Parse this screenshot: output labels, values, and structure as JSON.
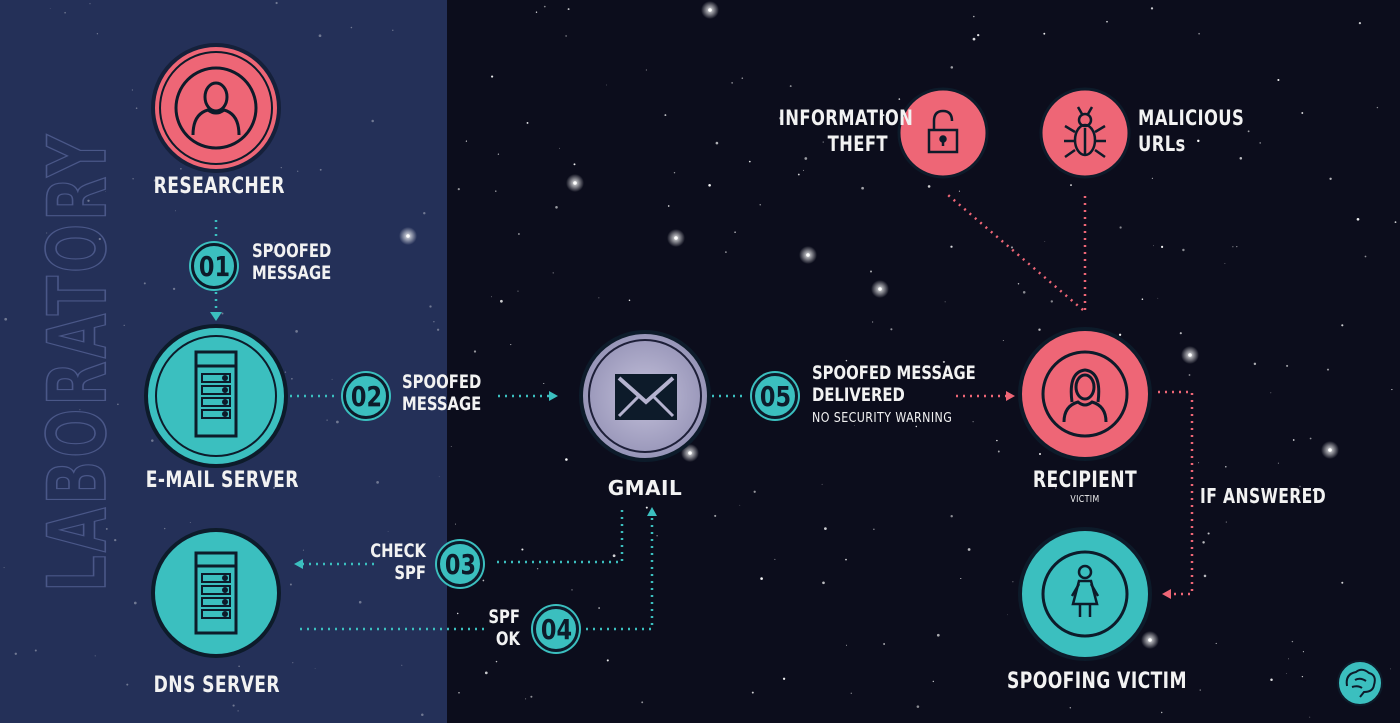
{
  "panel": {
    "label": "LABORATORY",
    "bg_color": "#243058"
  },
  "colors": {
    "teal": "#3bbfbf",
    "pink": "#ee6676",
    "dark": "#0d1b2a",
    "background": "#0c0d1c"
  },
  "nodes": {
    "researcher": {
      "label": "RESEARCHER",
      "icon": "user-icon"
    },
    "email_server": {
      "label": "E-MAIL SERVER",
      "icon": "server-icon"
    },
    "dns_server": {
      "label": "DNS SERVER",
      "icon": "server-icon"
    },
    "gmail": {
      "label": "GMAIL",
      "icon": "envelope-icon"
    },
    "recipient": {
      "label": "RECIPIENT",
      "sublabel": "VICTIM",
      "icon": "female-user-icon"
    },
    "spoofing_victim": {
      "label": "SPOOFING VICTIM",
      "icon": "female-figure-icon"
    },
    "information_theft": {
      "label_line1": "INFORMATION",
      "label_line2": "THEFT",
      "icon": "lock-icon"
    },
    "malicious_urls": {
      "label_line1": "MALICIOUS",
      "label_line2": "URLs",
      "icon": "bug-icon"
    }
  },
  "steps": [
    {
      "number": "01",
      "line1": "SPOOFED",
      "line2": "MESSAGE"
    },
    {
      "number": "02",
      "line1": "SPOOFED",
      "line2": "MESSAGE"
    },
    {
      "number": "03",
      "line1": "CHECK",
      "line2": "SPF"
    },
    {
      "number": "04",
      "line1": "SPF",
      "line2": "OK"
    },
    {
      "number": "05",
      "line1": "SPOOFED MESSAGE",
      "line2": "DELIVERED",
      "note": "NO SECURITY WARNING"
    }
  ],
  "edge_labels": {
    "if_answered": "IF ANSWERED"
  },
  "logo": {
    "icon": "brain-icon"
  }
}
